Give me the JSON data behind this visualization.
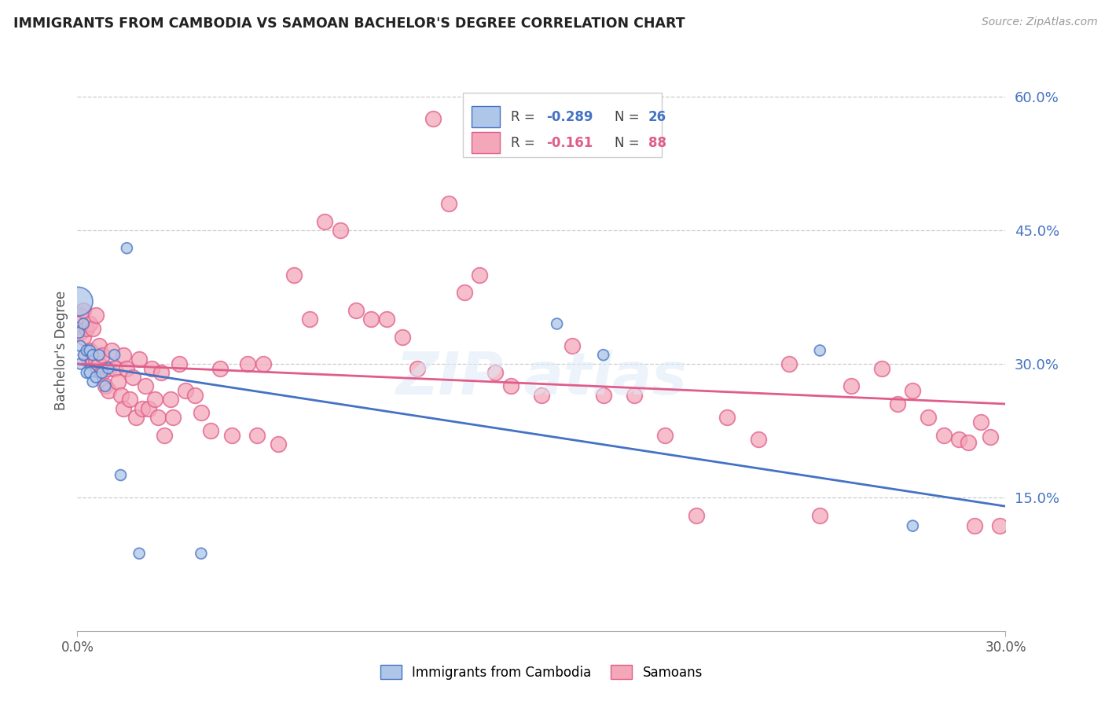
{
  "title": "IMMIGRANTS FROM CAMBODIA VS SAMOAN BACHELOR'S DEGREE CORRELATION CHART",
  "source": "Source: ZipAtlas.com",
  "ylabel": "Bachelor's Degree",
  "legend_label1": "Immigrants from Cambodia",
  "legend_label2": "Samoans",
  "color_cambodia_face": "#aec6e8",
  "color_cambodia_edge": "#4472c4",
  "color_samoan_face": "#f4a7b9",
  "color_samoan_edge": "#e05c8a",
  "color_line_cambodia": "#4472c4",
  "color_line_samoan": "#e05c8a",
  "color_grid": "#cccccc",
  "color_right_ticks": "#4472c4",
  "xlim": [
    0.0,
    0.3
  ],
  "ylim": [
    0.0,
    0.63
  ],
  "y_ticks": [
    0.15,
    0.3,
    0.45,
    0.6
  ],
  "y_tick_labels": [
    "15.0%",
    "30.0%",
    "45.0%",
    "60.0%"
  ],
  "x_ticks": [
    0.0,
    0.3
  ],
  "x_tick_labels": [
    "0.0%",
    "30.0%"
  ],
  "blue_line_y_start": 0.3,
  "blue_line_y_end": 0.14,
  "pink_line_y_start": 0.3,
  "pink_line_y_end": 0.255,
  "cambodia_x": [
    0.0003,
    0.0005,
    0.001,
    0.001,
    0.002,
    0.002,
    0.003,
    0.003,
    0.004,
    0.004,
    0.005,
    0.005,
    0.006,
    0.007,
    0.008,
    0.009,
    0.01,
    0.012,
    0.014,
    0.016,
    0.02,
    0.04,
    0.155,
    0.17,
    0.24,
    0.27
  ],
  "cambodia_y": [
    0.37,
    0.335,
    0.32,
    0.3,
    0.345,
    0.31,
    0.315,
    0.29,
    0.315,
    0.29,
    0.31,
    0.28,
    0.285,
    0.31,
    0.29,
    0.275,
    0.295,
    0.31,
    0.175,
    0.43,
    0.087,
    0.087,
    0.345,
    0.31,
    0.315,
    0.118
  ],
  "cambodia_sizes": [
    700,
    100,
    100,
    100,
    100,
    100,
    100,
    100,
    100,
    100,
    100,
    100,
    100,
    100,
    100,
    100,
    100,
    100,
    100,
    100,
    100,
    100,
    100,
    100,
    100,
    100
  ],
  "samoan_x": [
    0.001,
    0.001,
    0.002,
    0.002,
    0.003,
    0.003,
    0.004,
    0.004,
    0.005,
    0.005,
    0.006,
    0.006,
    0.007,
    0.007,
    0.008,
    0.008,
    0.009,
    0.01,
    0.01,
    0.011,
    0.012,
    0.013,
    0.014,
    0.015,
    0.015,
    0.016,
    0.017,
    0.018,
    0.019,
    0.02,
    0.021,
    0.022,
    0.023,
    0.024,
    0.025,
    0.026,
    0.027,
    0.028,
    0.03,
    0.031,
    0.033,
    0.035,
    0.038,
    0.04,
    0.043,
    0.046,
    0.05,
    0.055,
    0.058,
    0.06,
    0.065,
    0.07,
    0.075,
    0.08,
    0.085,
    0.09,
    0.095,
    0.1,
    0.105,
    0.11,
    0.115,
    0.12,
    0.125,
    0.13,
    0.135,
    0.14,
    0.15,
    0.16,
    0.17,
    0.18,
    0.19,
    0.2,
    0.21,
    0.22,
    0.23,
    0.24,
    0.25,
    0.26,
    0.265,
    0.27,
    0.275,
    0.28,
    0.285,
    0.288,
    0.29,
    0.292,
    0.295,
    0.298
  ],
  "samoan_y": [
    0.355,
    0.335,
    0.36,
    0.33,
    0.34,
    0.31,
    0.345,
    0.315,
    0.34,
    0.3,
    0.355,
    0.305,
    0.32,
    0.3,
    0.29,
    0.31,
    0.275,
    0.295,
    0.27,
    0.315,
    0.295,
    0.28,
    0.265,
    0.31,
    0.25,
    0.295,
    0.26,
    0.285,
    0.24,
    0.305,
    0.25,
    0.275,
    0.25,
    0.295,
    0.26,
    0.24,
    0.29,
    0.22,
    0.26,
    0.24,
    0.3,
    0.27,
    0.265,
    0.245,
    0.225,
    0.295,
    0.22,
    0.3,
    0.22,
    0.3,
    0.21,
    0.4,
    0.35,
    0.46,
    0.45,
    0.36,
    0.35,
    0.35,
    0.33,
    0.295,
    0.575,
    0.48,
    0.38,
    0.4,
    0.29,
    0.275,
    0.265,
    0.32,
    0.265,
    0.265,
    0.22,
    0.13,
    0.24,
    0.215,
    0.3,
    0.13,
    0.275,
    0.295,
    0.255,
    0.27,
    0.24,
    0.22,
    0.215,
    0.212,
    0.118,
    0.235,
    0.218,
    0.118
  ]
}
